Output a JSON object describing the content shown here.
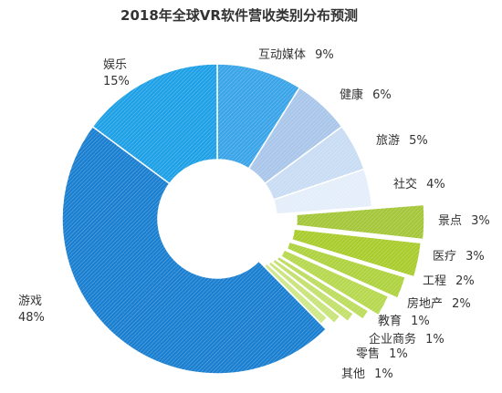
{
  "chart_data": {
    "type": "pie",
    "variant": "donut",
    "title": "2018年全球VR软件营收类别分布预测",
    "slices": [
      {
        "label": "互动媒体",
        "value_label": "9%",
        "value": 9,
        "color": "#3aa4e8",
        "exploded": false
      },
      {
        "label": "健康",
        "value_label": "6%",
        "value": 6,
        "color": "#a9c6ea",
        "exploded": false
      },
      {
        "label": "旅游",
        "value_label": "5%",
        "value": 5,
        "color": "#c8dcf3",
        "exploded": false
      },
      {
        "label": "社交",
        "value_label": "4%",
        "value": 4,
        "color": "#e4eefa",
        "exploded": false
      },
      {
        "label": "景点",
        "value_label": "3%",
        "value": 3,
        "color": "#a4c639",
        "exploded": true
      },
      {
        "label": "医疗",
        "value_label": "3%",
        "value": 3,
        "color": "#a9cc2c",
        "exploded": true
      },
      {
        "label": "工程",
        "value_label": "2%",
        "value": 2,
        "color": "#aed23e",
        "exploded": true
      },
      {
        "label": "房地产",
        "value_label": "2%",
        "value": 2,
        "color": "#b6d84e",
        "exploded": true
      },
      {
        "label": "教育",
        "value_label": "1%",
        "value": 1,
        "color": "#bcdc5c",
        "exploded": true
      },
      {
        "label": "企业商务",
        "value_label": "1%",
        "value": 1,
        "color": "#c2e06a",
        "exploded": true
      },
      {
        "label": "零售",
        "value_label": "1%",
        "value": 1,
        "color": "#c8e478",
        "exploded": true
      },
      {
        "label": "其他",
        "value_label": "1%",
        "value": 1,
        "color": "#cee886",
        "exploded": true
      },
      {
        "label": "游戏",
        "value_label": "48%",
        "value": 48,
        "color": "#1a7fd0",
        "exploded": false
      },
      {
        "label": "娱乐",
        "value_label": "15%",
        "value": 15,
        "color": "#1ea0e6",
        "exploded": false
      }
    ]
  }
}
